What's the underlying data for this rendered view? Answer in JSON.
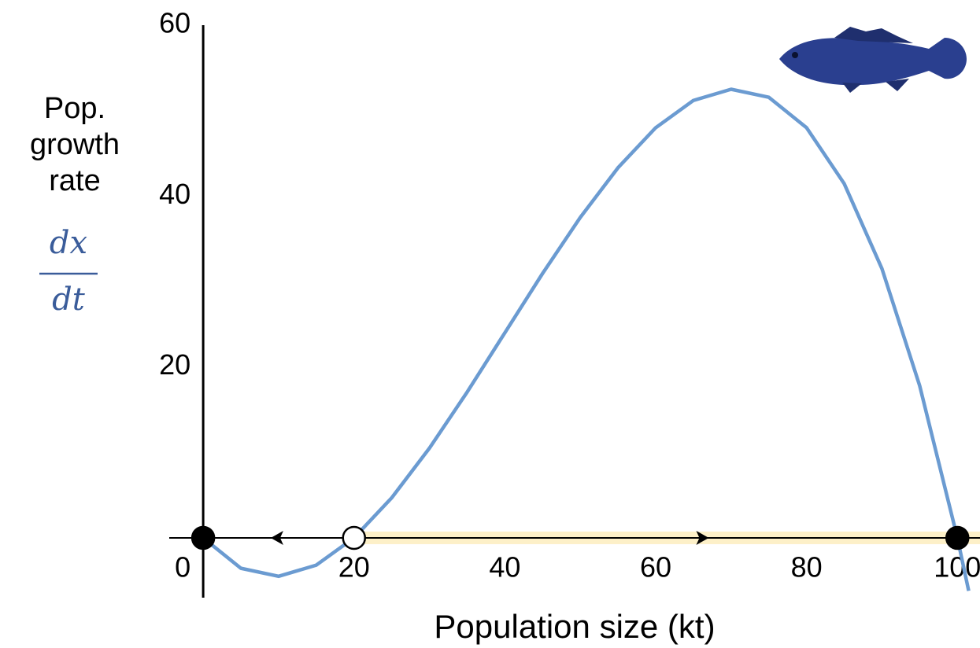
{
  "chart_data": {
    "type": "line",
    "xlabel": "Population size (kt)",
    "ylabel": [
      "Pop.",
      "growth",
      "rate"
    ],
    "ylabel_math": {
      "numerator": "dx",
      "denominator": "dt"
    },
    "x": [
      0,
      5,
      10,
      15,
      20,
      25,
      30,
      35,
      40,
      45,
      50,
      55,
      60,
      65,
      70,
      75,
      80,
      85,
      90,
      95,
      100,
      101.5
    ],
    "series": [
      {
        "color": "#6b9bd1",
        "values": [
          0,
          -3.56,
          -4.5,
          -3.19,
          0,
          4.69,
          10.5,
          17.06,
          24,
          30.94,
          37.5,
          43.31,
          48,
          51.19,
          52.5,
          51.56,
          48,
          41.44,
          31.5,
          17.81,
          0,
          -6.2
        ]
      }
    ],
    "xlim": [
      -4.5,
      103
    ],
    "ylim": [
      -7,
      60
    ],
    "xticks": [
      0,
      20,
      40,
      60,
      80,
      100
    ],
    "yticks": [
      20,
      40,
      60
    ],
    "equilibria": {
      "x": [
        0,
        20,
        100
      ],
      "y": [
        0,
        0,
        0
      ],
      "stable": [
        true,
        false,
        true
      ]
    },
    "arrows": {
      "x": [
        10,
        66
      ],
      "direction": [
        "left",
        "right"
      ]
    },
    "highlight": {
      "from": 20,
      "to": 103,
      "color": "#fdf0c8"
    }
  }
}
